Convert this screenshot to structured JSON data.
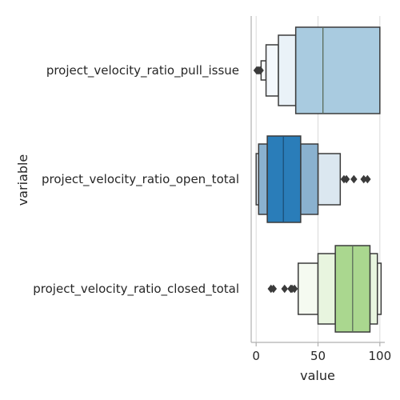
{
  "chart_data": {
    "type": "boxen",
    "orientation": "horizontal",
    "xlabel": "value",
    "ylabel": "variable",
    "xlim": [
      -4,
      104
    ],
    "xticks": [
      0,
      50,
      100
    ],
    "grid": "x-major",
    "categories": [
      "project_velocity_ratio_pull_issue",
      "project_velocity_ratio_open_total",
      "project_velocity_ratio_closed_total"
    ],
    "series": [
      {
        "category": "project_velocity_ratio_pull_issue",
        "median": 54,
        "color": "#a9cbe0",
        "levels": [
          {
            "lo": 32,
            "hi": 100,
            "color": "#a9cbe0"
          },
          {
            "lo": 18,
            "hi": 32,
            "color": "#eaf2f8"
          },
          {
            "lo": 8,
            "hi": 18,
            "color": "#f4f8fc"
          },
          {
            "lo": 4,
            "hi": 8,
            "color": "#f9fbfd"
          }
        ],
        "outliers": [
          0.5,
          1.5,
          2.5,
          3.5
        ]
      },
      {
        "category": "project_velocity_ratio_open_total",
        "median": 22,
        "color": "#2a7db9",
        "levels": [
          {
            "lo": 9,
            "hi": 36,
            "color": "#2a7db9"
          },
          {
            "lo": 36,
            "hi": 50,
            "color": "#8ab1cf",
            "side": "upper"
          },
          {
            "lo": 2,
            "hi": 9,
            "color": "#8ab1cf",
            "side": "lower"
          },
          {
            "lo": 50,
            "hi": 68,
            "color": "#dbe7f0",
            "side": "upper"
          },
          {
            "lo": 0,
            "hi": 2,
            "color": "#dbe7f0",
            "side": "lower"
          }
        ],
        "outliers": [
          71,
          73,
          79,
          87,
          90
        ]
      },
      {
        "category": "project_velocity_ratio_closed_total",
        "median": 78,
        "color": "#aad78f",
        "levels": [
          {
            "lo": 64,
            "hi": 92,
            "color": "#aad78f"
          },
          {
            "lo": 50,
            "hi": 64,
            "color": "#e8f5df",
            "side": "lower"
          },
          {
            "lo": 92,
            "hi": 98,
            "color": "#e8f5df",
            "side": "upper"
          },
          {
            "lo": 34,
            "hi": 50,
            "color": "#f5faf1",
            "side": "lower"
          },
          {
            "lo": 98,
            "hi": 101,
            "color": "#f5faf1",
            "side": "upper"
          }
        ],
        "outliers": [
          12,
          14,
          23,
          28,
          29,
          31
        ]
      }
    ]
  }
}
